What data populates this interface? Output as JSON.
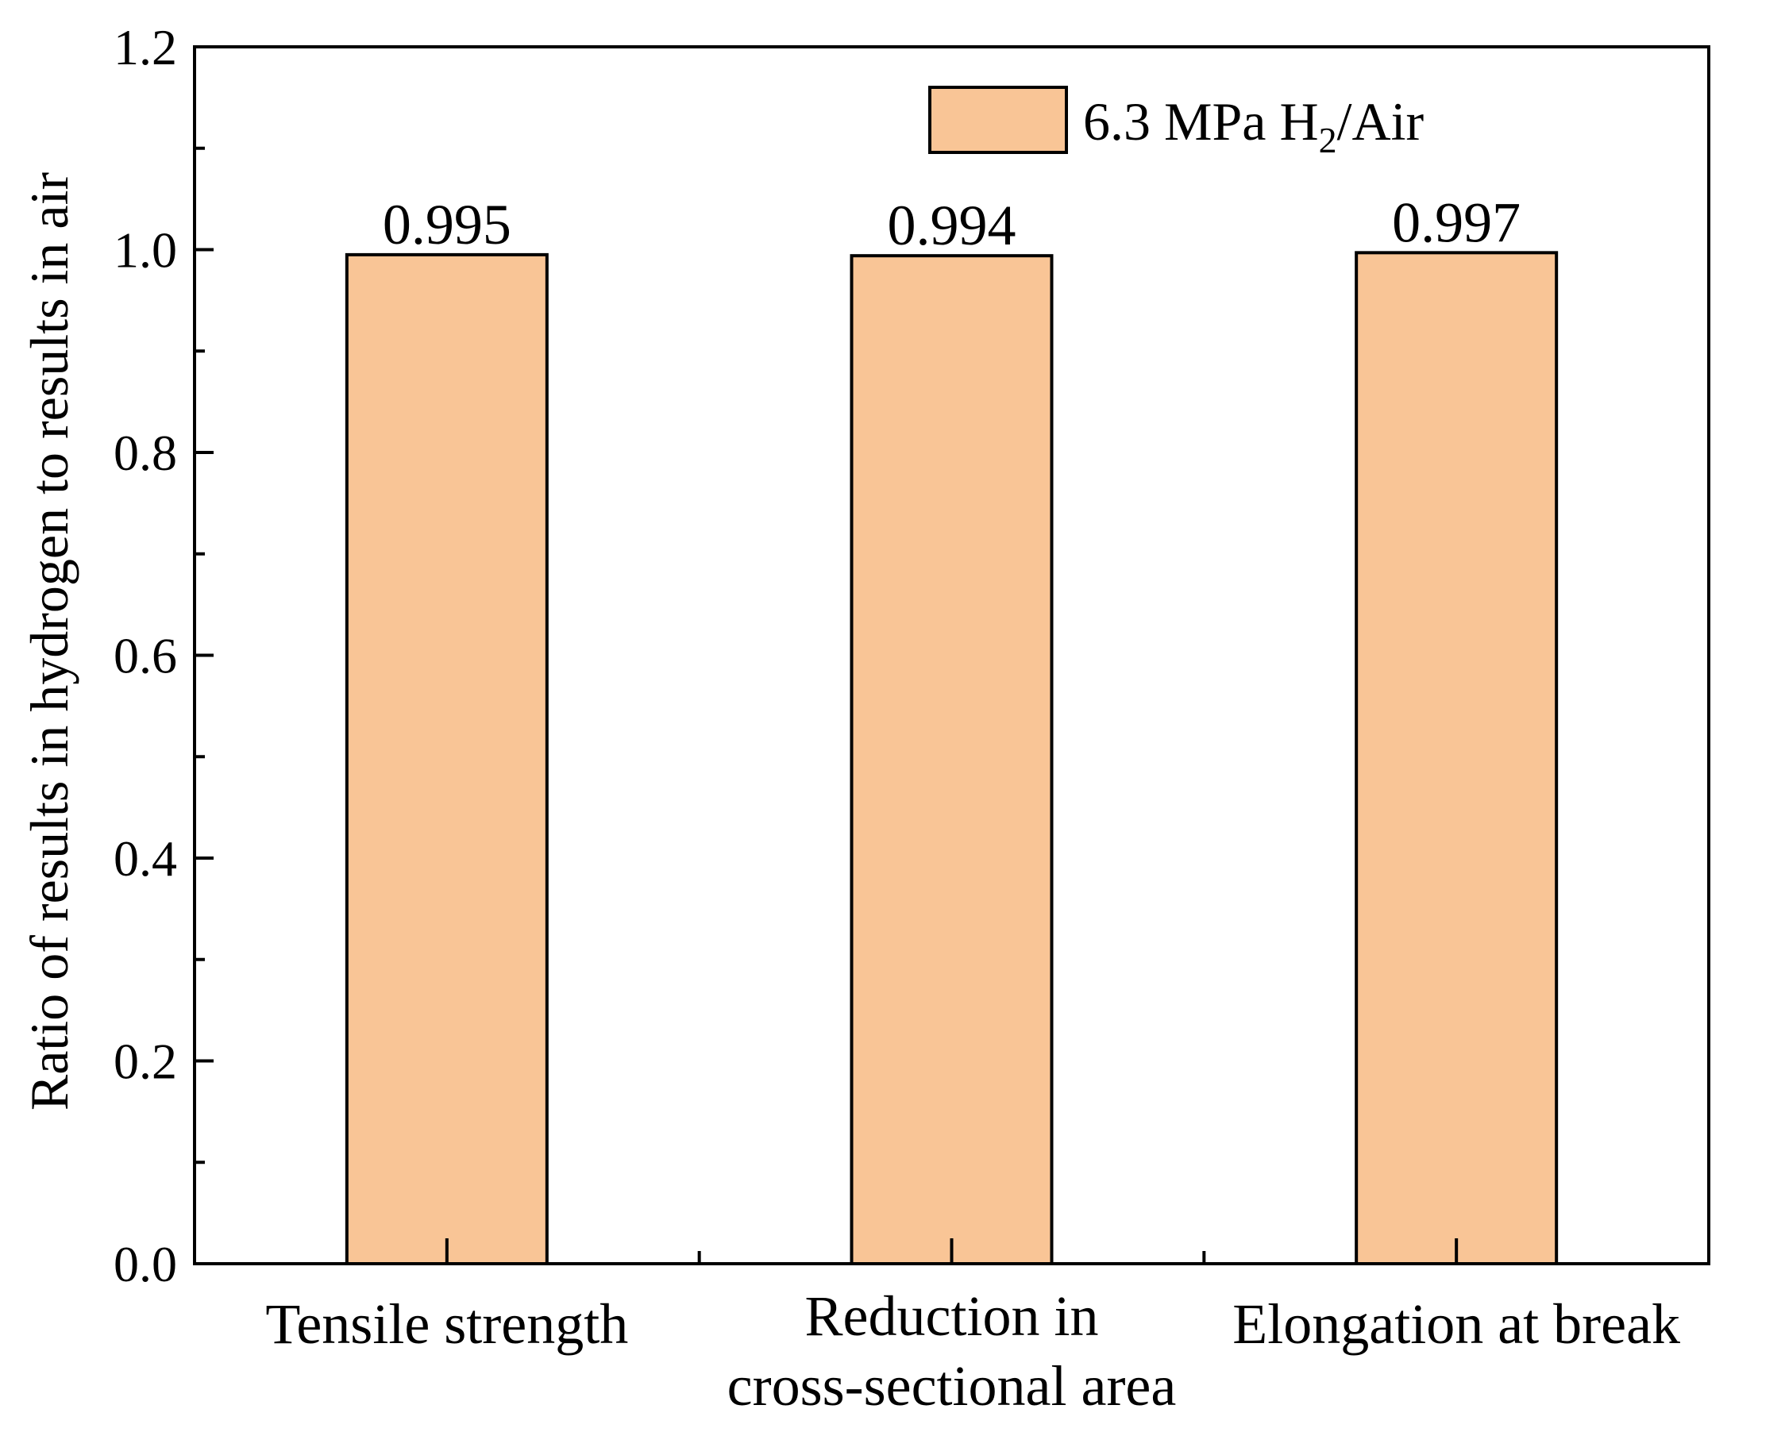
{
  "chart_data": {
    "type": "bar",
    "title": "",
    "xlabel": "",
    "ylabel": "Ratio of results in hydrogen to results in air",
    "ylim": [
      0,
      1.2
    ],
    "yticks": [
      "0.0",
      "0.2",
      "0.4",
      "0.6",
      "0.8",
      "1.0",
      "1.2"
    ],
    "categories": [
      [
        "Tensile strength"
      ],
      [
        "Reduction in",
        "cross-sectional area"
      ],
      [
        "Elongation at break"
      ]
    ],
    "series": [
      {
        "name": "6.3 MPa H2/Air",
        "legend_main": "6.3 MPa H",
        "legend_sub": "2",
        "legend_tail": "/Air",
        "color": "#F9C596",
        "values": [
          0.995,
          0.994,
          0.997
        ],
        "labels": [
          "0.995",
          "0.994",
          "0.997"
        ]
      }
    ],
    "legend_position": "top-right",
    "grid": false
  }
}
